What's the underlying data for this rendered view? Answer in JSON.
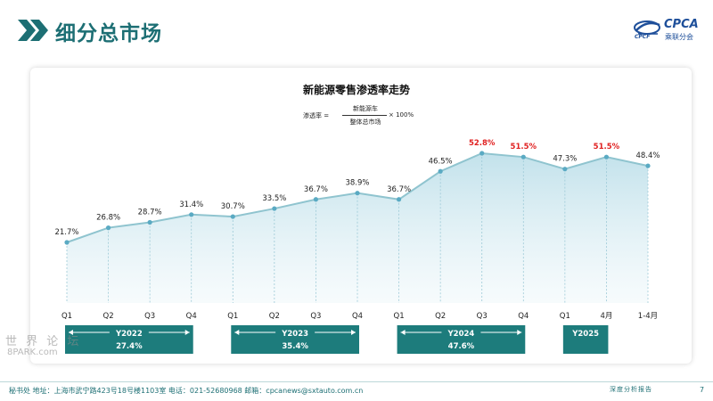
{
  "header": {
    "title": "细分总市场",
    "logo_text": "CPCA",
    "logo_cn": "乘联分会",
    "logo_sub": "CPCF"
  },
  "formula": {
    "lhs": "渗透率 =",
    "numerator": "新能源车",
    "denominator": "整体总市场",
    "rhs": "× 100%"
  },
  "colors": {
    "accent": "#1d6f74",
    "line": "#8fc4cf",
    "area_top": "#cfe7ee",
    "point": "#5aaac3",
    "highlight": "#e02020",
    "year_box": "#1d7c7c"
  },
  "chart_data": {
    "type": "area",
    "title": "新能源零售渗透率走势",
    "x": [
      "Q1",
      "Q2",
      "Q3",
      "Q4",
      "Q1",
      "Q2",
      "Q3",
      "Q4",
      "Q1",
      "Q2",
      "Q3",
      "Q4",
      "Q1",
      "4月",
      "1-4月"
    ],
    "values": [
      21.7,
      26.8,
      28.7,
      31.4,
      30.7,
      33.5,
      36.7,
      38.9,
      36.7,
      46.5,
      52.8,
      51.5,
      47.3,
      51.5,
      48.4
    ],
    "labels": [
      "21.7%",
      "26.8%",
      "28.7%",
      "31.4%",
      "30.7%",
      "33.5%",
      "36.7%",
      "38.9%",
      "36.7%",
      "46.5%",
      "52.8%",
      "51.5%",
      "47.3%",
      "51.5%",
      "48.4%"
    ],
    "highlight_indices": [
      10,
      11,
      13
    ],
    "groups": [
      {
        "year": "Y2022",
        "avg": "27.4%",
        "start": 0,
        "end": 3
      },
      {
        "year": "Y2023",
        "avg": "35.4%",
        "start": 4,
        "end": 7
      },
      {
        "year": "Y2024",
        "avg": "47.6%",
        "start": 8,
        "end": 11
      },
      {
        "year": "Y2025",
        "avg": "",
        "start": 12,
        "end": 13
      }
    ],
    "ylim": [
      0,
      60
    ],
    "grid": false
  },
  "footer": {
    "text": "秘书处   地址：上海市武宁路423号18号楼1103室   电话：021-52680968   邮箱：cpcanews@sxtauto.com.cn",
    "right": "深度分析报告",
    "page": "7"
  },
  "watermark": {
    "cn": "世 界 论 坛",
    "en": "8PARK.com"
  }
}
